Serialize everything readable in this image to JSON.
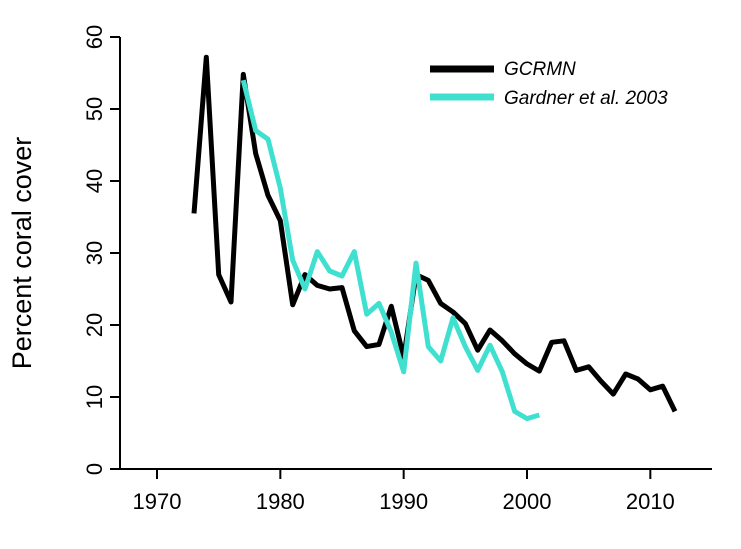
{
  "chart_data": {
    "type": "line",
    "title": "",
    "xlabel": "",
    "ylabel": "Percent coral cover",
    "xlim": [
      1967,
      2015
    ],
    "ylim": [
      0,
      60
    ],
    "x_ticks": [
      1970,
      1980,
      1990,
      2000,
      2010
    ],
    "y_ticks": [
      0,
      10,
      20,
      30,
      40,
      50,
      60
    ],
    "grid": false,
    "legend_position": "top-right",
    "series": [
      {
        "name": "GCRMN",
        "color": "#000000",
        "x": [
          1973,
          1974,
          1975,
          1976,
          1977,
          1978,
          1979,
          1980,
          1981,
          1982,
          1983,
          1984,
          1985,
          1986,
          1987,
          1988,
          1989,
          1990,
          1991,
          1992,
          1993,
          1994,
          1995,
          1996,
          1997,
          1998,
          1999,
          2000,
          2001,
          2002,
          2003,
          2004,
          2005,
          2006,
          2007,
          2008,
          2009,
          2010,
          2011,
          2012
        ],
        "y": [
          35.5,
          57.2,
          27.0,
          23.2,
          54.8,
          43.8,
          38.0,
          34.5,
          22.8,
          27.0,
          25.5,
          25.0,
          25.2,
          19.2,
          17.0,
          17.3,
          22.6,
          15.5,
          27.0,
          26.2,
          23.0,
          21.8,
          20.2,
          16.5,
          19.3,
          17.8,
          16.0,
          14.6,
          13.6,
          17.6,
          17.8,
          13.7,
          14.2,
          12.2,
          10.4,
          13.2,
          12.5,
          11.0,
          11.5,
          8.0
        ]
      },
      {
        "name": "Gardner et al. 2003",
        "color": "#40e0d0",
        "x": [
          1977,
          1978,
          1979,
          1980,
          1981,
          1982,
          1983,
          1984,
          1985,
          1986,
          1987,
          1988,
          1989,
          1990,
          1991,
          1992,
          1993,
          1994,
          1995,
          1996,
          1997,
          1998,
          1999,
          2000,
          2001
        ],
        "y": [
          54.0,
          47.0,
          45.8,
          39.0,
          29.0,
          25.0,
          30.2,
          27.5,
          26.8,
          30.2,
          21.5,
          23.0,
          19.0,
          13.5,
          28.6,
          17.0,
          15.0,
          21.0,
          17.0,
          13.7,
          17.2,
          13.5,
          8.0,
          7.0,
          7.5
        ]
      }
    ]
  }
}
